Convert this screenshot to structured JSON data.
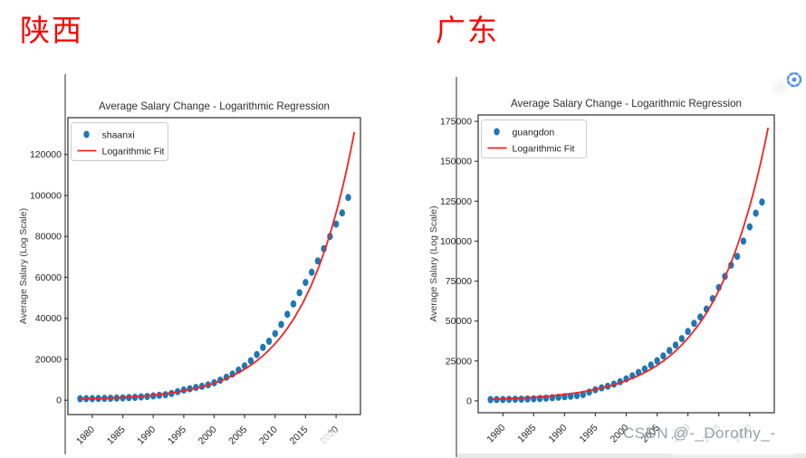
{
  "page": {
    "left_region_label": "陕西",
    "right_region_label": "广东",
    "region_label_color": "#f50806",
    "watermark_text": "CSDN @-_Dorothy_-",
    "focus_icon": "dashed-circle-dot-icon",
    "focus_icon_color": "#4f8ef7"
  },
  "chart_data": [
    {
      "type": "scatter",
      "region": "Shaanxi",
      "title": "Average Salary Change - Logarithmic Regression",
      "xlabel": "",
      "ylabel": "Average Salary (Log Scale)",
      "grid": false,
      "legend_position": "upper left",
      "legend": [
        {
          "label": "shaanxi",
          "marker": "dot",
          "color": "#1f77b4"
        },
        {
          "label": "Logarithmic Fit",
          "marker": "line",
          "color": "#f32222"
        }
      ],
      "xlim": [
        1976,
        2024
      ],
      "ylim": [
        -7000,
        138000
      ],
      "xticks": [
        1980,
        1985,
        1990,
        1995,
        2000,
        2005,
        2010,
        2015,
        2020
      ],
      "yticks": [
        0,
        20000,
        40000,
        60000,
        80000,
        100000,
        120000
      ],
      "x": [
        1978,
        1979,
        1980,
        1981,
        1982,
        1983,
        1984,
        1985,
        1986,
        1987,
        1988,
        1989,
        1990,
        1991,
        1992,
        1993,
        1994,
        1995,
        1996,
        1997,
        1998,
        1999,
        2000,
        2001,
        2002,
        2003,
        2004,
        2005,
        2006,
        2007,
        2008,
        2009,
        2010,
        2011,
        2012,
        2013,
        2014,
        2015,
        2016,
        2017,
        2018,
        2019,
        2020,
        2021,
        2022
      ],
      "y": [
        720,
        760,
        800,
        850,
        900,
        960,
        1050,
        1150,
        1270,
        1400,
        1600,
        1850,
        2100,
        2350,
        2700,
        3300,
        4200,
        5000,
        5600,
        6200,
        6800,
        7500,
        8500,
        9800,
        11200,
        12800,
        14700,
        16800,
        19300,
        22300,
        25800,
        28800,
        32500,
        37000,
        42000,
        47000,
        52500,
        57500,
        62500,
        68000,
        74000,
        80000,
        86000,
        91500,
        99000
      ],
      "fit": {
        "type": "exponential",
        "x_start": 1978,
        "x_end": 2023,
        "y_start": 600,
        "y_end": 131000
      }
    },
    {
      "type": "scatter",
      "region": "Guangdong",
      "title": "Average Salary Change - Logarithmic Regression",
      "xlabel": "",
      "ylabel": "Average Salary (Log Scale)",
      "grid": false,
      "legend_position": "upper left",
      "legend": [
        {
          "label": "guangdon",
          "marker": "dot",
          "color": "#1f77b4"
        },
        {
          "label": "Logarithmic Fit",
          "marker": "line",
          "color": "#f32222"
        }
      ],
      "xlim": [
        1976,
        2024
      ],
      "ylim": [
        -7400,
        179000
      ],
      "xticks": [
        1980,
        1985,
        1990,
        1995,
        2000,
        2005,
        2010,
        2015,
        2020
      ],
      "yticks": [
        0,
        25000,
        50000,
        75000,
        100000,
        125000,
        150000,
        175000
      ],
      "x": [
        1978,
        1979,
        1980,
        1981,
        1982,
        1983,
        1984,
        1985,
        1986,
        1987,
        1988,
        1989,
        1990,
        1991,
        1992,
        1993,
        1994,
        1995,
        1996,
        1997,
        1998,
        1999,
        2000,
        2001,
        2002,
        2003,
        2004,
        2005,
        2006,
        2007,
        2008,
        2009,
        2010,
        2011,
        2012,
        2013,
        2014,
        2015,
        2016,
        2017,
        2018,
        2019,
        2020,
        2021,
        2022
      ],
      "y": [
        800,
        850,
        900,
        960,
        1030,
        1100,
        1220,
        1350,
        1500,
        1700,
        2000,
        2300,
        2600,
        2900,
        3300,
        4000,
        5500,
        7000,
        8200,
        9200,
        10500,
        12000,
        13800,
        15700,
        17800,
        20000,
        22500,
        25200,
        28200,
        31500,
        35000,
        39000,
        43500,
        48500,
        52500,
        57500,
        64000,
        71000,
        78000,
        85000,
        90500,
        100000,
        109000,
        117500,
        124500
      ],
      "fit": {
        "type": "exponential",
        "x_start": 1978,
        "x_end": 2023,
        "y_start": 1050,
        "y_end": 171000
      }
    }
  ]
}
